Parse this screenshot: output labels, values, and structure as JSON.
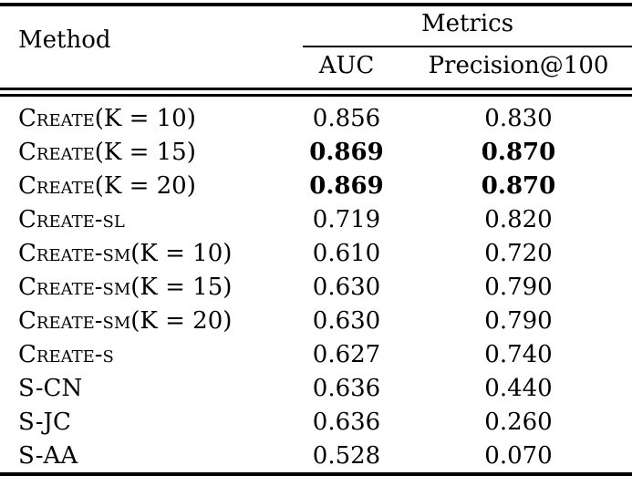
{
  "table": {
    "header": {
      "method": "Method",
      "metrics_group": "Metrics",
      "columns": [
        "AUC",
        "Precision@100"
      ]
    },
    "rows": [
      {
        "method": "Create(K = 10)",
        "auc": "0.856",
        "precision": "0.830",
        "bold": false
      },
      {
        "method": "Create(K = 15)",
        "auc": "0.869",
        "precision": "0.870",
        "bold": true
      },
      {
        "method": "Create(K = 20)",
        "auc": "0.869",
        "precision": "0.870",
        "bold": true
      },
      {
        "method": "Create-sl",
        "auc": "0.719",
        "precision": "0.820",
        "bold": false
      },
      {
        "method": "Create-sm(K = 10)",
        "auc": "0.610",
        "precision": "0.720",
        "bold": false
      },
      {
        "method": "Create-sm(K = 15)",
        "auc": "0.630",
        "precision": "0.790",
        "bold": false
      },
      {
        "method": "Create-sm(K = 20)",
        "auc": "0.630",
        "precision": "0.790",
        "bold": false
      },
      {
        "method": "Create-s",
        "auc": "0.627",
        "precision": "0.740",
        "bold": false
      },
      {
        "method": "S-CN",
        "auc": "0.636",
        "precision": "0.440",
        "bold": false
      },
      {
        "method": "S-JC",
        "auc": "0.636",
        "precision": "0.260",
        "bold": false
      },
      {
        "method": "S-AA",
        "auc": "0.528",
        "precision": "0.070",
        "bold": false
      }
    ],
    "colors": {
      "text": "#000000",
      "background": "#ffffff",
      "rule": "#000000"
    }
  }
}
